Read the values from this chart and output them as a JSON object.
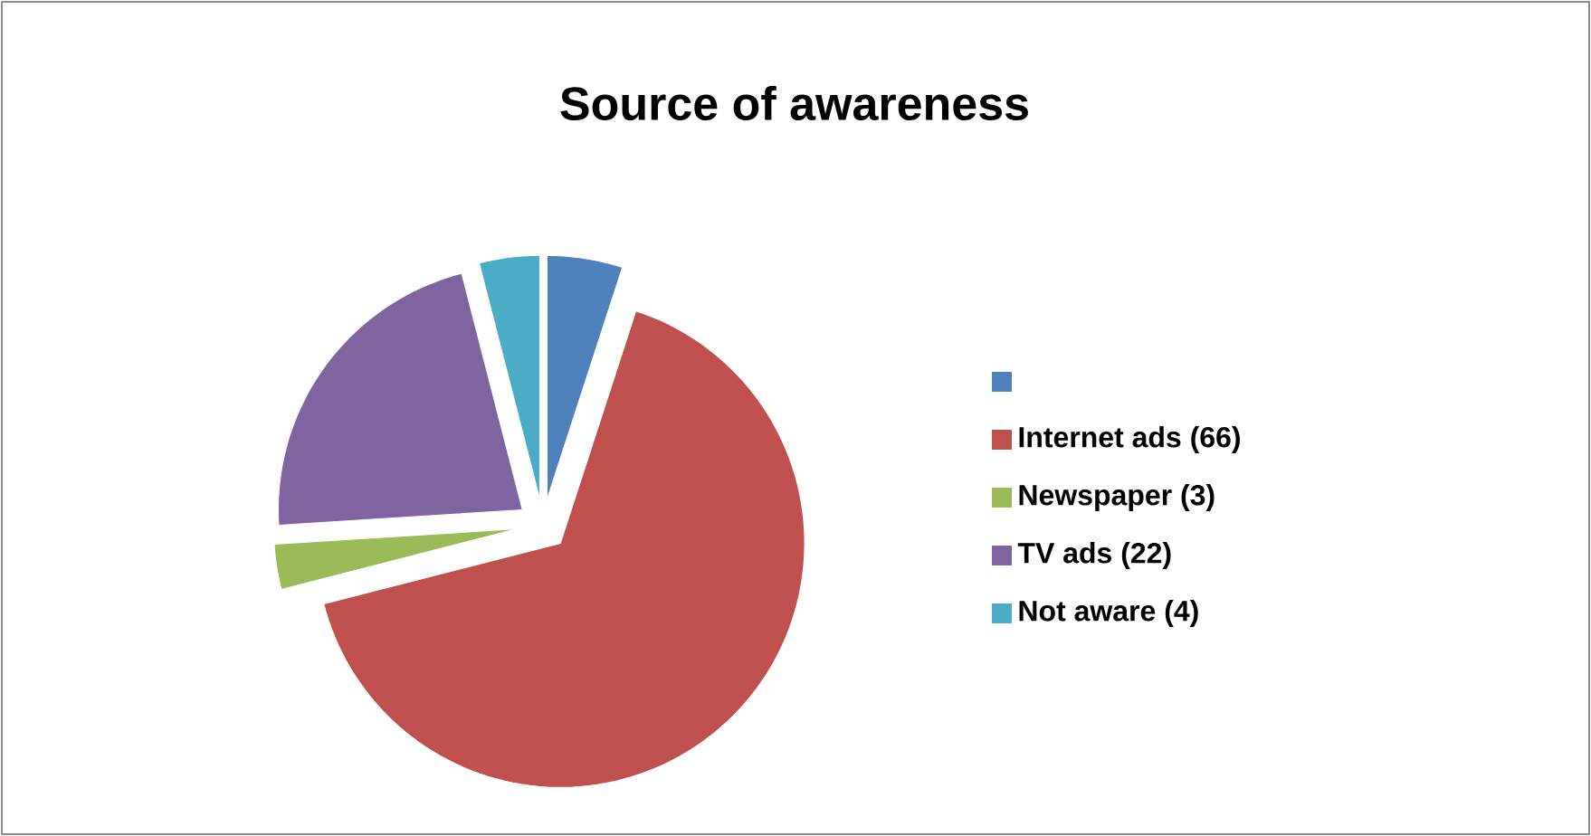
{
  "chart_data": {
    "type": "pie",
    "title": "Source of awareness",
    "categories": [
      null,
      "Internet ads (66)",
      "Newspaper (3)",
      "TV ads (22)",
      "Not aware (4)"
    ],
    "values": [
      5,
      66,
      3,
      22,
      4
    ],
    "colors": [
      "#4f81bd",
      "#c0504d",
      "#9bbb59",
      "#8064a2",
      "#4bacc6"
    ],
    "legend": "right"
  }
}
